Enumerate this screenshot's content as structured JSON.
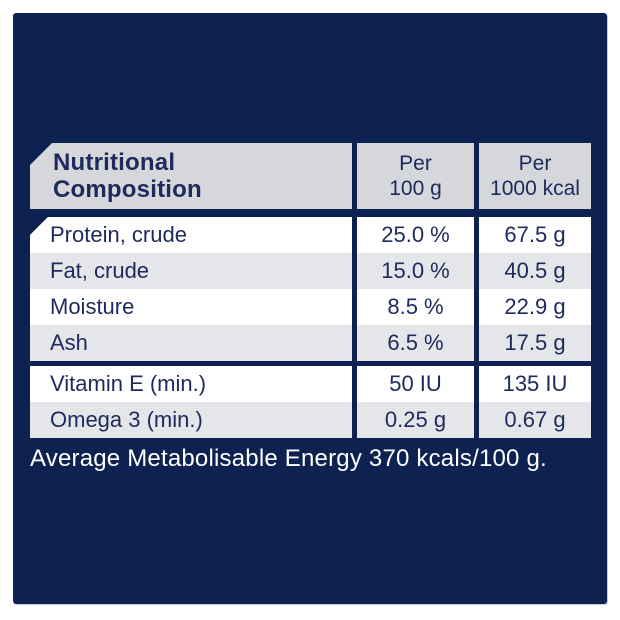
{
  "colors": {
    "panel_navy": "#0e2252",
    "text_navy": "#1e2a5c",
    "header_gray": "#d5d7da",
    "row_gray": "#e4e6e9",
    "row_white": "#ffffff",
    "footer_text": "#ffffff"
  },
  "table": {
    "title": "Nutritional\nComposition",
    "columns": [
      {
        "label": "Per\n100 g"
      },
      {
        "label": "Per\n1000 kcal"
      }
    ],
    "rows": [
      {
        "label": "Protein, crude",
        "per_100g": "25.0 %",
        "per_1000kcal": "67.5 g"
      },
      {
        "label": "Fat, crude",
        "per_100g": "15.0 %",
        "per_1000kcal": "40.5 g"
      },
      {
        "label": "Moisture",
        "per_100g": "8.5 %",
        "per_1000kcal": "22.9 g"
      },
      {
        "label": "Ash",
        "per_100g": "6.5 %",
        "per_1000kcal": "17.5 g"
      },
      {
        "label": "Vitamin E (min.)",
        "per_100g": "50 IU",
        "per_1000kcal": "135 IU"
      },
      {
        "label": "Omega 3 (min.)",
        "per_100g": "0.25 g",
        "per_1000kcal": "0.67 g"
      }
    ]
  },
  "footer": {
    "energy_note": "Average Metabolisable Energy 370 kcals/100 g."
  }
}
